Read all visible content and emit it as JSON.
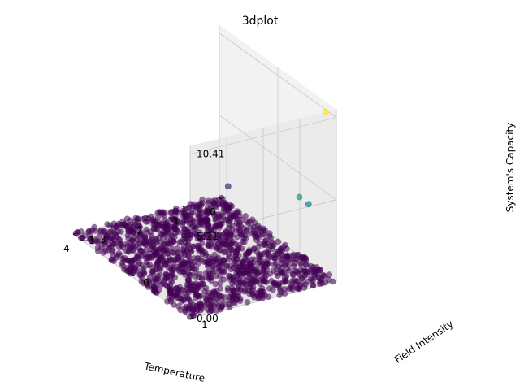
{
  "chart_data": {
    "type": "scatter",
    "title": "3dplot",
    "xlabel": "Temperature",
    "ylabel": "Field Intensity",
    "zlabel": "System's Capacity",
    "xlim": [
      0,
      4
    ],
    "ylim": [
      -1,
      1
    ],
    "zlim": [
      0,
      10.41
    ],
    "x_ticks": [
      "0",
      "1",
      "2",
      "3",
      "4"
    ],
    "y_ticks": [
      "−1",
      "0",
      "1"
    ],
    "z_ticks": [
      "0.00",
      "5.21",
      "10.41"
    ],
    "colormap": "viridis",
    "grid": true,
    "note_bulk": "dense uniform cloud of points over x in [0,4], y in [-1,1] with z near 0",
    "outliers": [
      {
        "x": 0.05,
        "y": 0.85,
        "z": 10.41
      },
      {
        "x": 0.85,
        "y": 0.9,
        "z": 5.6
      },
      {
        "x": 0.6,
        "y": 0.9,
        "z": 5.0
      },
      {
        "x": 0.4,
        "y": -0.6,
        "z": 2.0
      }
    ]
  }
}
